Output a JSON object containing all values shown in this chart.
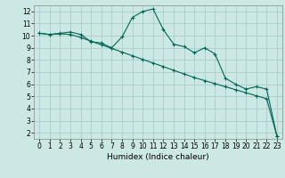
{
  "title": "",
  "xlabel": "Humidex (Indice chaleur)",
  "bg_color": "#cce8e4",
  "grid_color": "#aacccc",
  "line_color": "#006655",
  "xlim": [
    -0.5,
    23.5
  ],
  "ylim": [
    1.5,
    12.5
  ],
  "x_ticks": [
    0,
    1,
    2,
    3,
    4,
    5,
    6,
    7,
    8,
    9,
    10,
    11,
    12,
    13,
    14,
    15,
    16,
    17,
    18,
    19,
    20,
    21,
    22,
    23
  ],
  "y_ticks": [
    2,
    3,
    4,
    5,
    6,
    7,
    8,
    9,
    10,
    11,
    12
  ],
  "line1_x": [
    0,
    1,
    2,
    3,
    4,
    5,
    6,
    7,
    8,
    9,
    10,
    11,
    12,
    13,
    14,
    15,
    16,
    17,
    18,
    19,
    20,
    21,
    22,
    23
  ],
  "line1_y": [
    10.2,
    10.1,
    10.2,
    10.3,
    10.1,
    9.5,
    9.4,
    9.0,
    9.9,
    11.5,
    12.0,
    12.2,
    10.5,
    9.3,
    9.1,
    8.6,
    9.0,
    8.5,
    6.5,
    6.0,
    5.6,
    5.8,
    5.6,
    1.7
  ],
  "line2_x": [
    0,
    1,
    2,
    3,
    4,
    5,
    6,
    7,
    8,
    9,
    10,
    11,
    12,
    13,
    14,
    15,
    16,
    17,
    18,
    19,
    20,
    21,
    22,
    23
  ],
  "line2_y": [
    10.2,
    10.1,
    10.15,
    10.1,
    9.85,
    9.55,
    9.25,
    8.95,
    8.65,
    8.35,
    8.05,
    7.75,
    7.45,
    7.15,
    6.85,
    6.55,
    6.3,
    6.05,
    5.8,
    5.55,
    5.3,
    5.05,
    4.8,
    1.7
  ],
  "tick_fontsize": 5.5,
  "xlabel_fontsize": 6.5,
  "marker_size": 3,
  "line_width": 0.8
}
